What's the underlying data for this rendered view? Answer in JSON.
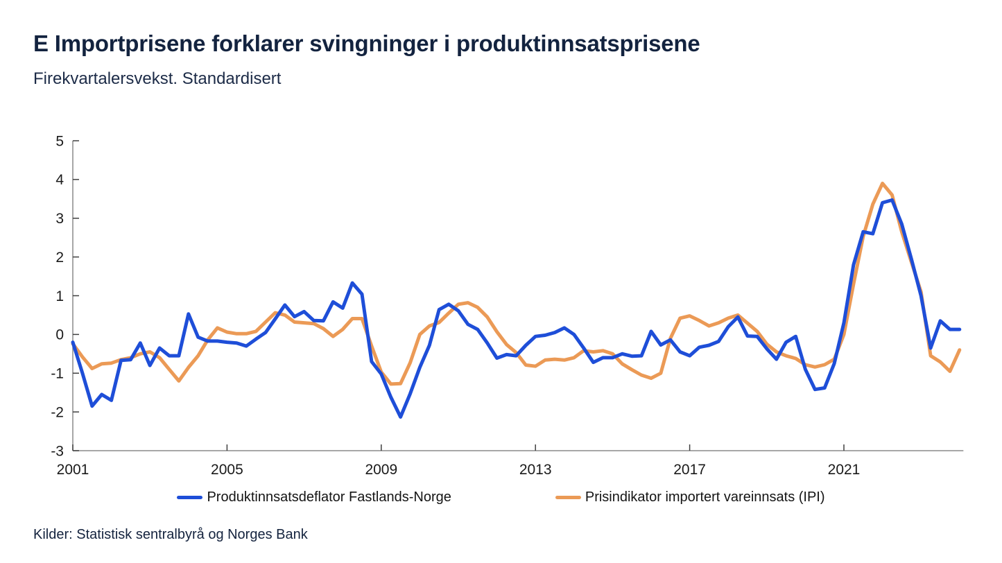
{
  "page": {
    "title": "E Importprisene forklarer svingninger i produktinnsatsprisene",
    "subtitle": "Firekvartalersvekst. Standardisert",
    "source": "Kilder: Statistisk sentralbyrå og Norges Bank"
  },
  "legend": {
    "items": [
      {
        "label": "Produktinnsatsdeflator Fastlands-Norge",
        "color": "#1e4ed8"
      },
      {
        "label": "Prisindikator importert vareinnsats (IPI)",
        "color": "#eb9a56"
      }
    ]
  },
  "colors": {
    "axis": "#8a8a8a",
    "tick": "#3f3f3f",
    "tick_label": "#1a1a1a",
    "title_navy": "#13233f",
    "blue_series": "#1e4ed8",
    "orange_series": "#eb9a56"
  },
  "chart_data": {
    "type": "line",
    "title": "E Importprisene forklarer svingninger i produktinnsatsprisene",
    "subtitle": "Firekvartalersvekst. Standardisert",
    "xlabel": "",
    "ylabel": "",
    "grid": false,
    "legend_position": "bottom",
    "frequency": "quarterly",
    "x_start": 2001.0,
    "x_step": 0.25,
    "xlim": [
      2001.0,
      2024.1
    ],
    "ylim": [
      -3,
      5
    ],
    "x_ticks": [
      2001,
      2005,
      2009,
      2013,
      2017,
      2021
    ],
    "y_ticks": [
      -3,
      -2,
      -1,
      0,
      1,
      2,
      3,
      4,
      5
    ],
    "series": [
      {
        "name": "Produktinnsatsdeflator Fastlands-Norge",
        "color": "#1e4ed8",
        "values": [
          -0.2,
          -1.0,
          -1.85,
          -1.55,
          -1.7,
          -0.67,
          -0.65,
          -0.22,
          -0.8,
          -0.35,
          -0.55,
          -0.55,
          0.53,
          -0.07,
          -0.17,
          -0.17,
          -0.2,
          -0.22,
          -0.3,
          -0.12,
          0.05,
          0.4,
          0.76,
          0.46,
          0.59,
          0.36,
          0.35,
          0.84,
          0.68,
          1.33,
          1.04,
          -0.7,
          -1.02,
          -1.62,
          -2.13,
          -1.53,
          -0.85,
          -0.28,
          0.64,
          0.78,
          0.61,
          0.26,
          0.13,
          -0.22,
          -0.61,
          -0.52,
          -0.55,
          -0.28,
          -0.05,
          -0.02,
          0.05,
          0.17,
          0.0,
          -0.35,
          -0.72,
          -0.6,
          -0.6,
          -0.5,
          -0.56,
          -0.55,
          0.08,
          -0.27,
          -0.14,
          -0.45,
          -0.55,
          -0.33,
          -0.28,
          -0.18,
          0.2,
          0.45,
          -0.04,
          -0.05,
          -0.37,
          -0.64,
          -0.2,
          -0.05,
          -0.9,
          -1.42,
          -1.38,
          -0.75,
          0.3,
          1.8,
          2.65,
          2.6,
          3.4,
          3.47,
          2.85,
          1.95,
          1.0,
          -0.35,
          0.35,
          0.13,
          0.13
        ]
      },
      {
        "name": "Prisindikator importert vareinnsats (IPI)",
        "color": "#eb9a56",
        "values": [
          -0.24,
          -0.58,
          -0.88,
          -0.76,
          -0.74,
          -0.65,
          -0.6,
          -0.5,
          -0.45,
          -0.6,
          -0.9,
          -1.2,
          -0.85,
          -0.55,
          -0.14,
          0.17,
          0.06,
          0.02,
          0.02,
          0.08,
          0.32,
          0.56,
          0.5,
          0.32,
          0.3,
          0.28,
          0.15,
          -0.05,
          0.13,
          0.41,
          0.41,
          -0.3,
          -0.97,
          -1.28,
          -1.27,
          -0.73,
          0.0,
          0.22,
          0.31,
          0.55,
          0.78,
          0.82,
          0.7,
          0.45,
          0.07,
          -0.26,
          -0.47,
          -0.79,
          -0.82,
          -0.66,
          -0.64,
          -0.66,
          -0.6,
          -0.42,
          -0.45,
          -0.42,
          -0.5,
          -0.76,
          -0.91,
          -1.05,
          -1.13,
          -1.0,
          -0.1,
          0.42,
          0.48,
          0.36,
          0.22,
          0.3,
          0.42,
          0.5,
          0.29,
          0.08,
          -0.25,
          -0.45,
          -0.55,
          -0.62,
          -0.78,
          -0.84,
          -0.78,
          -0.64,
          0.0,
          1.3,
          2.53,
          3.36,
          3.9,
          3.6,
          2.65,
          1.87,
          1.1,
          -0.55,
          -0.71,
          -0.95,
          -0.4
        ]
      }
    ]
  }
}
